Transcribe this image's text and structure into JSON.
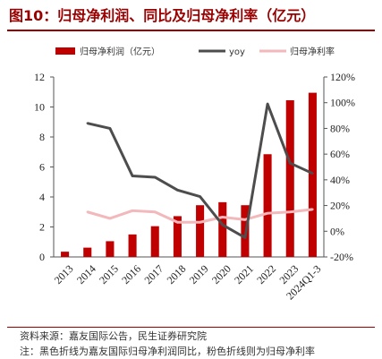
{
  "title": "图10：归母净利润、同比及归母净利率（亿元）",
  "footer": {
    "source": "资料来源：嘉友国际公告，民生证券研究院",
    "note": "注：黑色折线为嘉友国际归母净利润同比，粉色折线则为归母净利率"
  },
  "colors": {
    "bar": "#c00000",
    "yoy": "#4d4d4d",
    "margin": "#f2b8bb",
    "accent": "#9b0000"
  },
  "chart_data": {
    "type": "bar",
    "categories": [
      "2013",
      "2014",
      "2015",
      "2016",
      "2017",
      "2018",
      "2019",
      "2020",
      "2021",
      "2022",
      "2023",
      "2024Q1-3"
    ],
    "ylim_left": [
      0,
      12
    ],
    "yticks_left": [
      "0",
      "2",
      "4",
      "6",
      "8",
      "10",
      "12"
    ],
    "ylim_right": [
      -20,
      120
    ],
    "yticks_right": [
      "-20%",
      "0%",
      "20%",
      "40%",
      "60%",
      "80%",
      "100%",
      "120%"
    ],
    "legend_position": "top",
    "series": [
      {
        "name": "归母净利润（亿元）",
        "type": "bar",
        "axis": "left",
        "values": [
          0.35,
          0.62,
          1.05,
          1.5,
          2.05,
          2.72,
          3.45,
          3.65,
          3.45,
          6.85,
          10.45,
          10.95
        ]
      },
      {
        "name": "yoy",
        "type": "line",
        "axis": "right",
        "values": [
          null,
          84,
          80,
          43,
          42,
          32,
          27,
          5,
          -5,
          99,
          53,
          45
        ]
      },
      {
        "name": "归母净利率",
        "type": "line",
        "axis": "right",
        "values": [
          null,
          15,
          10,
          16,
          15,
          7,
          7,
          11,
          9,
          14,
          15,
          17
        ]
      }
    ]
  }
}
